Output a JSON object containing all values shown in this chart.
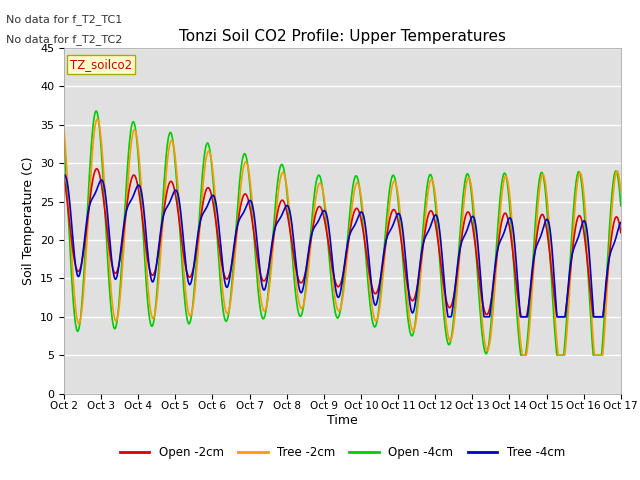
{
  "title": "Tonzi Soil CO2 Profile: Upper Temperatures",
  "xlabel": "Time",
  "ylabel": "Soil Temperature (C)",
  "ylim": [
    0,
    45
  ],
  "yticks": [
    0,
    5,
    10,
    15,
    20,
    25,
    30,
    35,
    40,
    45
  ],
  "background_color": "#ffffff",
  "plot_bg_color": "#e0e0e0",
  "annotations": [
    "No data for f_T2_TC1",
    "No data for f_T2_TC2"
  ],
  "legend_label": "TZ_soilco2",
  "series_labels": [
    "Open -2cm",
    "Tree -2cm",
    "Open -4cm",
    "Tree -4cm"
  ],
  "series_colors": [
    "#dd0000",
    "#ff9900",
    "#00cc00",
    "#0000cc"
  ],
  "x_tick_labels": [
    "Oct 2",
    "Oct 3",
    "Oct 4",
    "Oct 5",
    "Oct 6",
    "Oct 7",
    "Oct 8",
    "Oct 9",
    "Oct 10",
    "Oct 11",
    "Oct 12",
    "Oct 13",
    "Oct 14",
    "Oct 15",
    "Oct 16",
    "Oct 17"
  ],
  "n_days": 15,
  "pts_per_day": 144,
  "figsize": [
    6.4,
    4.8
  ],
  "dpi": 100
}
